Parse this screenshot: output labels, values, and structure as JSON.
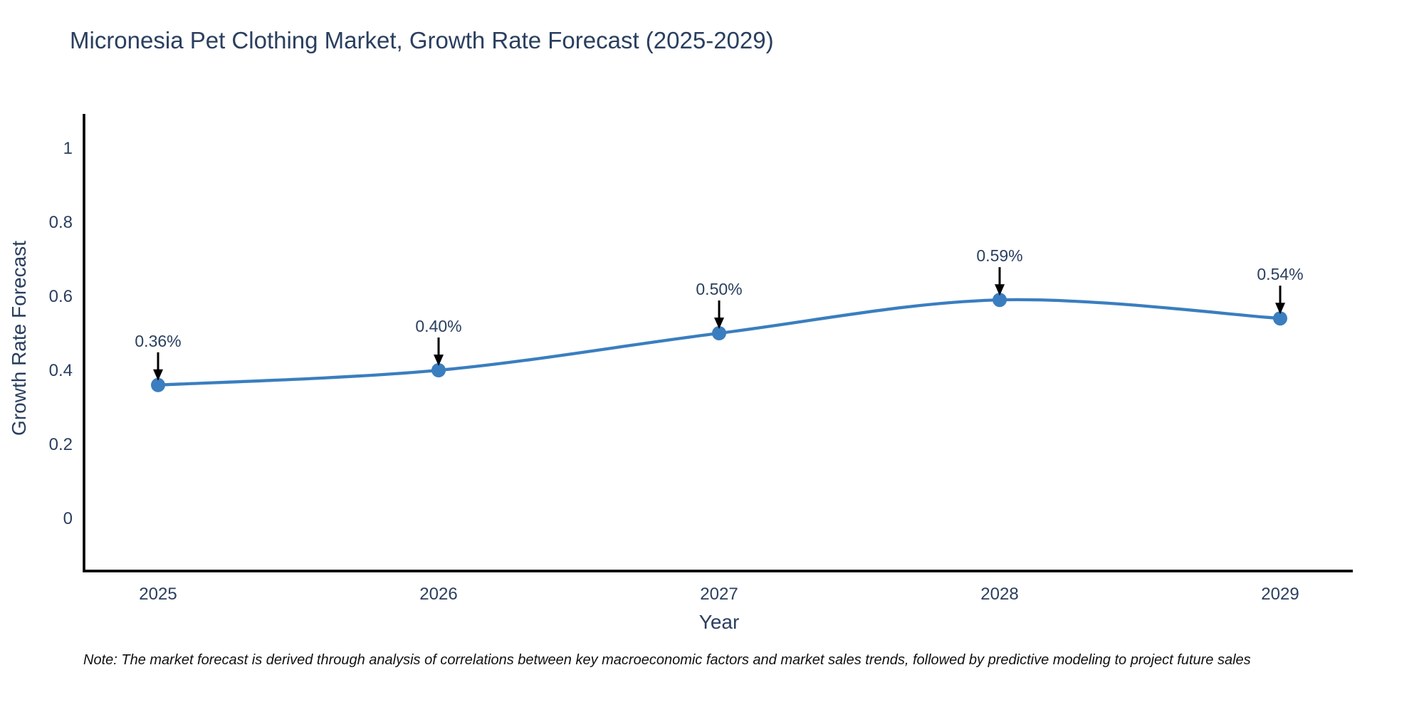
{
  "title": "Micronesia Pet Clothing Market, Growth Rate Forecast (2025-2029)",
  "note": "Note: The market forecast is derived through analysis of correlations between key macroeconomic factors and market sales trends, followed by predictive modeling to project future sales",
  "chart_data": {
    "type": "line",
    "title": "Micronesia Pet Clothing Market, Growth Rate Forecast (2025-2029)",
    "xlabel": "Year",
    "ylabel": "Growth Rate Forecast",
    "x": [
      2025,
      2026,
      2027,
      2028,
      2029
    ],
    "values": [
      0.36,
      0.4,
      0.5,
      0.59,
      0.54
    ],
    "point_labels": [
      "0.36%",
      "0.40%",
      "0.50%",
      "0.59%",
      "0.54%"
    ],
    "x_tick_labels": [
      "2025",
      "2026",
      "2027",
      "2028",
      "2029"
    ],
    "y_ticks": [
      0,
      0.2,
      0.4,
      0.6,
      0.8,
      1
    ],
    "y_tick_labels": [
      "0",
      "0.2",
      "0.4",
      "0.6",
      "0.8",
      "1"
    ],
    "ylim": [
      -0.142,
      1.092
    ],
    "line_shape": "spline",
    "grid": false,
    "legend_position": "none",
    "colors": {
      "line": "#3a7ebf",
      "marker": "#3a7ebf",
      "axis_line": "#000000",
      "tick_text": "#2a3f5f",
      "annotation_text": "#2a3f5f",
      "annotation_arrow": "#000000",
      "background": "#ffffff"
    }
  }
}
